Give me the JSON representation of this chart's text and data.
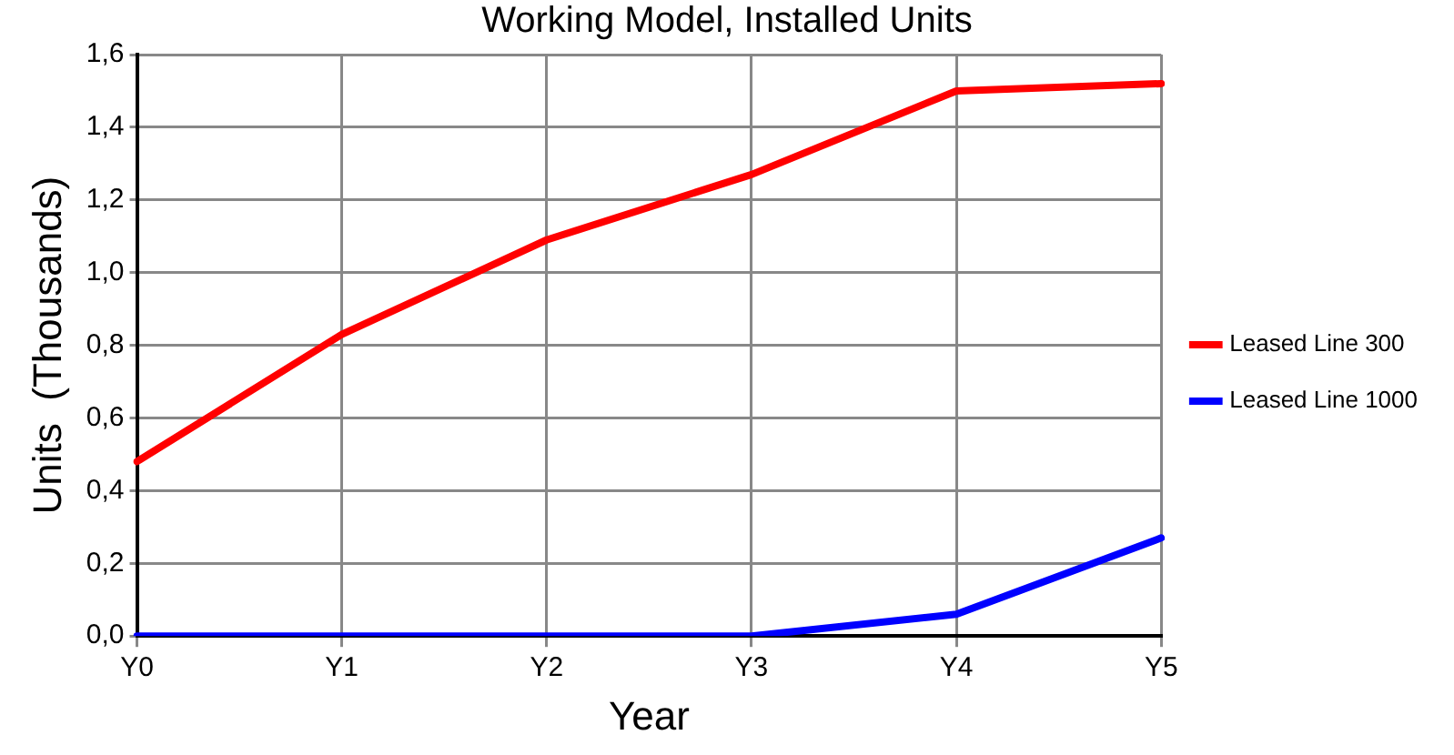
{
  "chart_data": {
    "type": "line",
    "title": "Working Model, Installed Units",
    "xlabel": "Year",
    "ylabel": "Units  (Thousands)",
    "categories": [
      "Y0",
      "Y1",
      "Y2",
      "Y3",
      "Y4",
      "Y5"
    ],
    "series": [
      {
        "name": "Leased Line 300",
        "color": "#ff0000",
        "values": [
          0.48,
          0.83,
          1.09,
          1.27,
          1.5,
          1.52
        ]
      },
      {
        "name": "Leased Line 1000",
        "color": "#0000ff",
        "values": [
          0,
          0,
          0,
          0,
          0.06,
          0.27
        ]
      }
    ],
    "ylim": [
      0,
      1.6
    ],
    "yticks": [
      {
        "value": 0,
        "label": "0,0"
      },
      {
        "value": 0.2,
        "label": "0,2"
      },
      {
        "value": 0.4,
        "label": "0,4"
      },
      {
        "value": 0.6,
        "label": "0,6"
      },
      {
        "value": 0.8,
        "label": "0,8"
      },
      {
        "value": 1,
        "label": "1,0"
      },
      {
        "value": 1.2,
        "label": "1,2"
      },
      {
        "value": 1.4,
        "label": "1,4"
      },
      {
        "value": 1.6,
        "label": "1,6"
      }
    ],
    "grid": true,
    "legend": "right",
    "marker": "none",
    "line_style": "solid"
  }
}
